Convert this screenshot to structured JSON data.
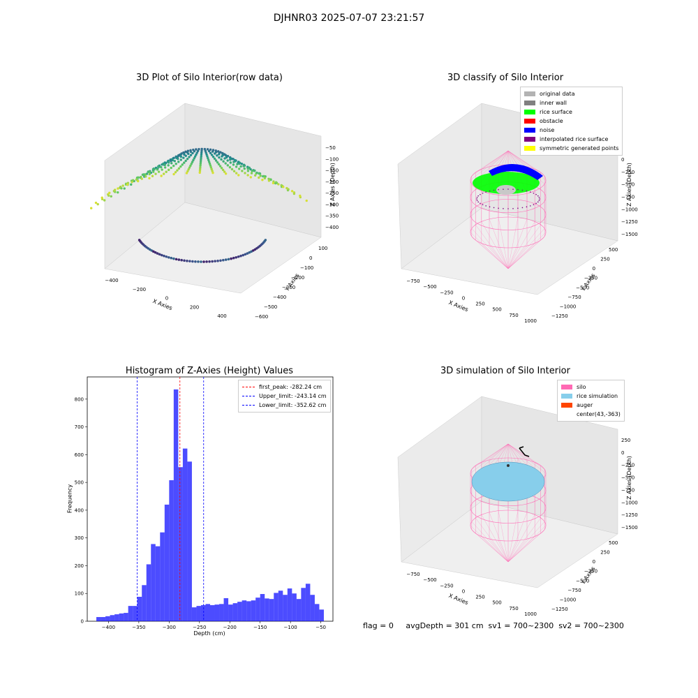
{
  "suptitle": "DJHNR03 2025-07-07 23:21:57",
  "panels": {
    "p1": {
      "title": "3D Plot of Silo Interior(row data)",
      "xlabel": "X Axies",
      "ylabel": "Y Axies",
      "zlabel": "Z Axies (Depth)",
      "xticks": [
        "−400",
        "−200",
        "0",
        "200",
        "400"
      ],
      "yticks": [
        "100",
        "0",
        "−100",
        "−200",
        "−300",
        "−400",
        "−500",
        "−600"
      ],
      "zticks": [
        "−50",
        "−100",
        "−150",
        "−200",
        "−250",
        "−300",
        "−350",
        "−400"
      ]
    },
    "p2": {
      "title": "3D classify of Silo Interior",
      "xlabel": "X Axies",
      "ylabel": "Y Axies",
      "zlabel": "Z Axies (Depth)",
      "xticks": [
        "−750",
        "−500",
        "−250",
        "0",
        "250",
        "500",
        "750",
        "1000"
      ],
      "yticks": [
        "500",
        "250",
        "0",
        "−250",
        "−500",
        "−750",
        "−1000",
        "−1250"
      ],
      "zticks": [
        "0",
        "−250",
        "−500",
        "−750",
        "−1000",
        "−1250",
        "−1500"
      ],
      "legend": [
        {
          "label": "original data",
          "color": "#b3b3b3"
        },
        {
          "label": "inner wall",
          "color": "#808080"
        },
        {
          "label": "rice surface",
          "color": "#00ff00"
        },
        {
          "label": "obstacle",
          "color": "#ff0000"
        },
        {
          "label": "noise",
          "color": "#0000ff"
        },
        {
          "label": "interpolated rice surface",
          "color": "#800080"
        },
        {
          "label": "symmetric generated points",
          "color": "#ffff00"
        }
      ]
    },
    "p4": {
      "title": "3D simulation of Silo Interior",
      "xlabel": "X Axies",
      "ylabel": "Y Axies",
      "zlabel": "Z Axies (Depth)",
      "xticks": [
        "−750",
        "−500",
        "−250",
        "0",
        "250",
        "500",
        "750",
        "1000"
      ],
      "yticks": [
        "500",
        "250",
        "0",
        "−250",
        "−500",
        "−750",
        "−1000",
        "−1250"
      ],
      "zticks": [
        "250",
        "0",
        "−250",
        "−500",
        "−750",
        "−1000",
        "−1250",
        "−1500"
      ],
      "legend": [
        {
          "label": "silo",
          "color": "#ff69b4"
        },
        {
          "label": "rice simulation",
          "color": "#87ceeb"
        },
        {
          "label": "auger",
          "color": "#ff4500"
        },
        {
          "label": "center(43,-363)",
          "color": ""
        }
      ]
    }
  },
  "chart_data": {
    "type": "bar",
    "title": "Histogram of Z-Axies (Height) Values",
    "xlabel": "Depth (cm)",
    "ylabel": "Frequency",
    "xlim": [
      -435,
      -30
    ],
    "ylim": [
      0,
      880
    ],
    "xticks": [
      -400,
      -350,
      -300,
      -250,
      -200,
      -150,
      -100,
      -50
    ],
    "yticks": [
      0,
      100,
      200,
      300,
      400,
      500,
      600,
      700,
      800
    ],
    "bin_width": 7.5,
    "bin_start": -420,
    "values": [
      15,
      15,
      18,
      22,
      25,
      28,
      30,
      55,
      55,
      88,
      130,
      205,
      278,
      270,
      320,
      420,
      508,
      835,
      555,
      622,
      575,
      50,
      55,
      58,
      62,
      58,
      60,
      62,
      83,
      60,
      65,
      70,
      75,
      72,
      75,
      85,
      98,
      82,
      80,
      102,
      110,
      95,
      118,
      100,
      80,
      120,
      135,
      95,
      62,
      42
    ],
    "color": "#0000ff",
    "lines": [
      {
        "label": "first_peak: -282.24 cm",
        "x": -282.24,
        "color": "#ff0000"
      },
      {
        "label": "Upper_limit: -243.14 cm",
        "x": -243.14,
        "color": "#0000ff"
      },
      {
        "label": "Lower_limit: -352.62 cm",
        "x": -352.62,
        "color": "#0000ff"
      }
    ]
  },
  "status_line": "flag = 0     avgDepth = 301 cm  sv1 = 700~2300  sv2 = 700~2300"
}
